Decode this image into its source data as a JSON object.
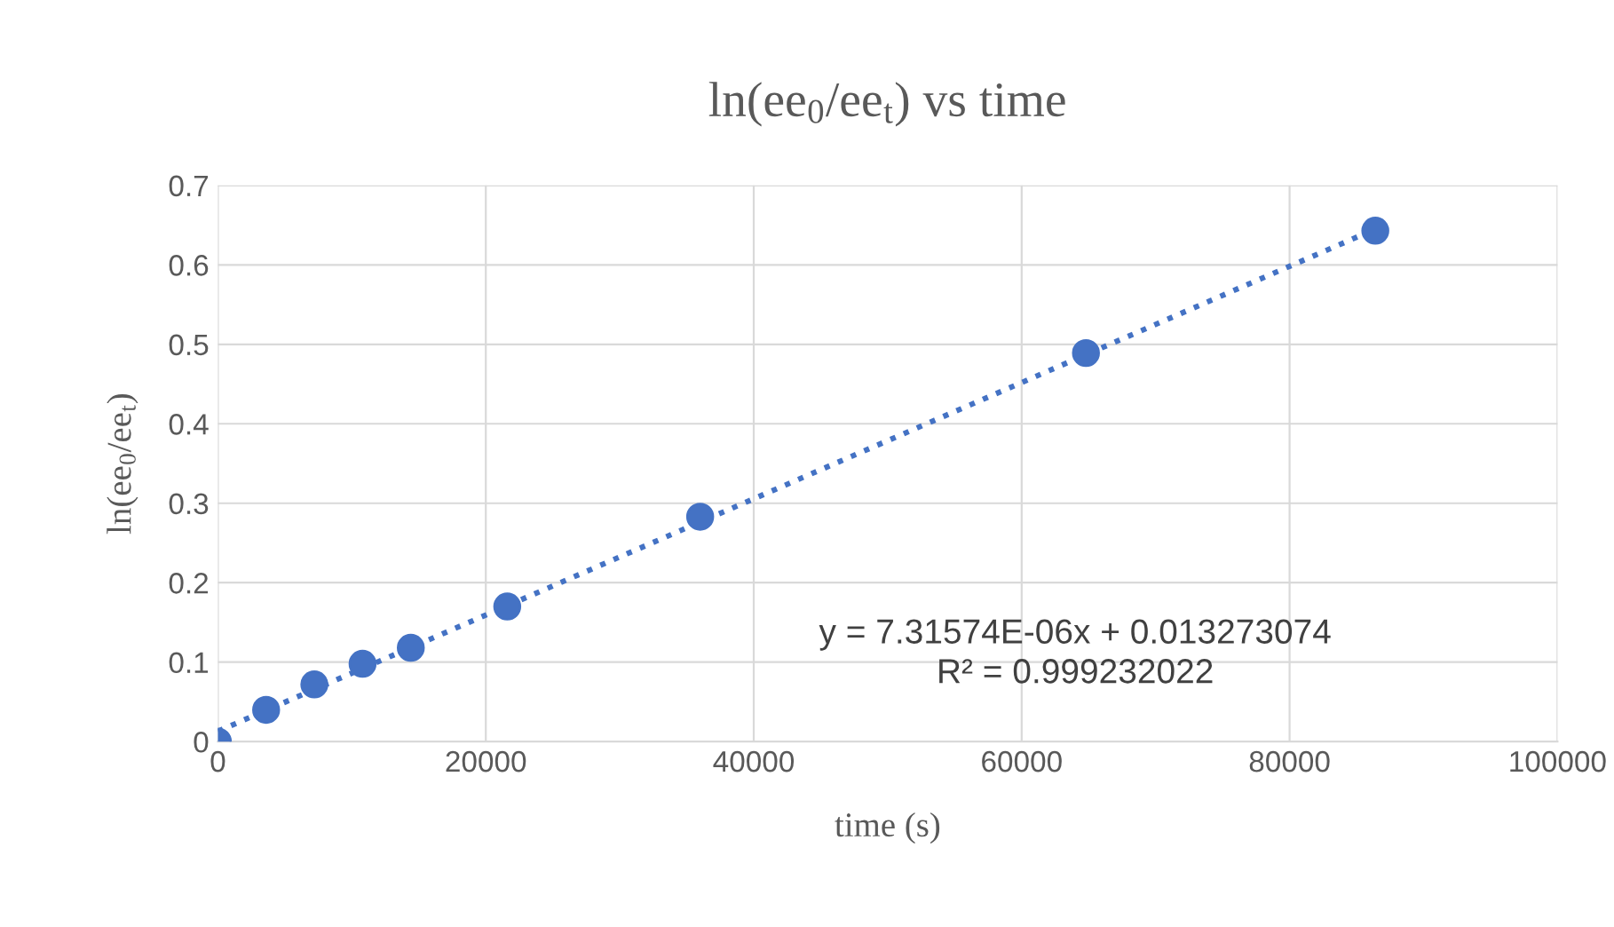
{
  "chart_data": {
    "type": "scatter",
    "title": "ln(ee$_{0}$/ee$_{t}$) vs time",
    "xlabel": "time (s)",
    "ylabel": "ln(ee$_{0}$/ee$_{t}$)",
    "x": [
      0,
      3600,
      7200,
      10800,
      14400,
      21600,
      36000,
      64800,
      86400
    ],
    "series": [
      {
        "color": "#4472c4",
        "marker": "circle",
        "values": [
          0,
          0.04,
          0.072,
          0.098,
          0.118,
          0.17,
          0.283,
          0.489,
          0.643
        ]
      },
      {
        "type": "line",
        "color": "#4472c4",
        "line_style": "dotted",
        "marker": "none",
        "x": [
          0,
          86400
        ],
        "values": [
          0.013,
          0.645
        ]
      }
    ],
    "xlim": [
      0,
      100000
    ],
    "xticks": [
      0,
      20000,
      40000,
      60000,
      80000,
      100000
    ],
    "ylim": [
      0,
      0.7
    ],
    "yticks": [
      0,
      0.1,
      0.2,
      0.3,
      0.4,
      0.5,
      0.6,
      0.7
    ],
    "grid": true,
    "legend": false,
    "annotations": [
      "y = 7.31574E-06x + 0.013273074\nR² = 0.999232022"
    ]
  }
}
